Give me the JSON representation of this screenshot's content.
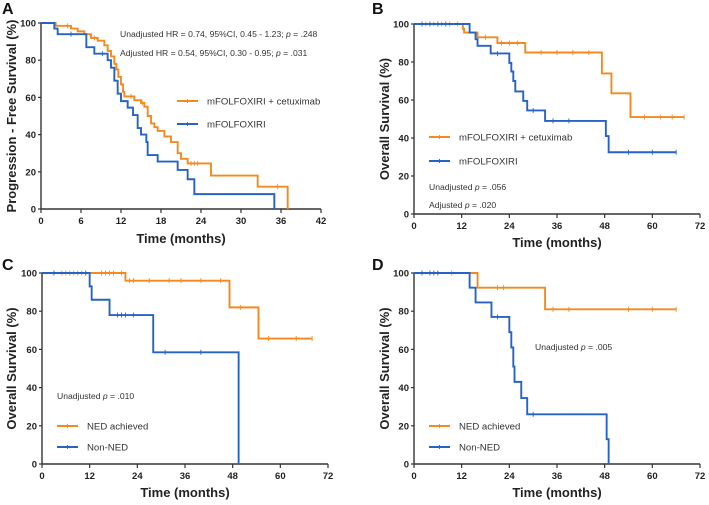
{
  "colors": {
    "orange": "#F28A1F",
    "blue": "#2563C4",
    "axis": "#333333"
  },
  "chart_data": [
    {
      "panel": "A",
      "type": "line",
      "xlabel": "Time (months)",
      "ylabel": "Progression - Free Survival (%)",
      "xlim": [
        0,
        42
      ],
      "ylim": [
        0,
        100
      ],
      "xticks": [
        0,
        6,
        12,
        18,
        24,
        30,
        36,
        42
      ],
      "yticks": [
        0,
        20,
        40,
        60,
        80,
        100
      ],
      "annotations": [
        "Unadjusted HR = 0.74, 95%CI, 0.45 - 1.23; p = .248",
        "Adjusted HR = 0.54, 95%CI, 0.30 - 0.95; p = .031"
      ],
      "legend_position": "right",
      "series": [
        {
          "name": "mFOLFOXIRI + cetuximab",
          "color": "orange",
          "end": 37,
          "steps": [
            [
              0,
              100
            ],
            [
              2.2,
              98.5
            ],
            [
              4.5,
              97
            ],
            [
              5.5,
              95.5
            ],
            [
              6.5,
              94
            ],
            [
              7.5,
              92
            ],
            [
              8.5,
              90.5
            ],
            [
              9.5,
              88
            ],
            [
              10,
              85
            ],
            [
              10.5,
              82
            ],
            [
              11,
              78
            ],
            [
              11.3,
              75
            ],
            [
              11.6,
              71
            ],
            [
              12,
              67
            ],
            [
              12.3,
              63
            ],
            [
              12.5,
              60.5
            ],
            [
              14,
              58.5
            ],
            [
              15,
              57
            ],
            [
              15.5,
              55
            ],
            [
              16,
              50
            ],
            [
              16.5,
              46
            ],
            [
              17,
              44
            ],
            [
              17.5,
              42
            ],
            [
              18.5,
              39
            ],
            [
              19.5,
              36
            ],
            [
              20.5,
              30
            ],
            [
              21,
              27
            ],
            [
              22,
              24.5
            ],
            [
              25.5,
              18
            ],
            [
              32.5,
              12
            ],
            [
              37,
              0
            ]
          ],
          "censored": [
            4,
            8,
            13.5,
            15.2,
            22.5,
            23,
            23.5,
            35.5
          ]
        },
        {
          "name": "mFOLFOXIRI",
          "color": "blue",
          "end": 35,
          "steps": [
            [
              0,
              100
            ],
            [
              2,
              97
            ],
            [
              2.5,
              94
            ],
            [
              6.8,
              87
            ],
            [
              8,
              83.5
            ],
            [
              10,
              80
            ],
            [
              10.5,
              76
            ],
            [
              11,
              69
            ],
            [
              11.5,
              62
            ],
            [
              12,
              58
            ],
            [
              13,
              54.5
            ],
            [
              13.8,
              50.5
            ],
            [
              14.5,
              43.5
            ],
            [
              15,
              40
            ],
            [
              15.8,
              36
            ],
            [
              16,
              29
            ],
            [
              17.5,
              25.5
            ],
            [
              20.5,
              21
            ],
            [
              22,
              16
            ],
            [
              23,
              8
            ],
            [
              35,
              0
            ]
          ],
          "censored": [
            4.5,
            9.2
          ]
        }
      ]
    },
    {
      "panel": "B",
      "type": "line",
      "xlabel": "Time (months)",
      "ylabel": "Overall Survival (%)",
      "xlim": [
        0,
        72
      ],
      "ylim": [
        0,
        100
      ],
      "xticks": [
        0,
        12,
        24,
        36,
        48,
        60,
        72
      ],
      "yticks": [
        0,
        20,
        40,
        60,
        80,
        100
      ],
      "annotations": [
        "Unadjusted p = .056",
        "Adjusted p = .020"
      ],
      "legend_position": "center-left",
      "series": [
        {
          "name": "mFOLFOXIRI + cetuximab",
          "color": "orange",
          "end": 68,
          "steps": [
            [
              0,
              100
            ],
            [
              12.3,
              97.5
            ],
            [
              12.6,
              95.5
            ],
            [
              16,
              93
            ],
            [
              21,
              90
            ],
            [
              28,
              85
            ],
            [
              47.3,
              74
            ],
            [
              49.7,
              63.5
            ],
            [
              54.5,
              51
            ]
          ],
          "censored": [
            3,
            5,
            7,
            9,
            11,
            18,
            22,
            24,
            26,
            32,
            36,
            40,
            44,
            58,
            62,
            65,
            68
          ]
        },
        {
          "name": "mFOLFOXIRI",
          "color": "blue",
          "end": 66,
          "steps": [
            [
              0,
              100
            ],
            [
              14,
              95.5
            ],
            [
              15.5,
              92
            ],
            [
              16,
              88.5
            ],
            [
              19.3,
              84.5
            ],
            [
              24,
              79.5
            ],
            [
              24.5,
              75
            ],
            [
              25,
              70
            ],
            [
              25.5,
              64.5
            ],
            [
              27.5,
              59.5
            ],
            [
              28.5,
              54.5
            ],
            [
              33,
              49
            ],
            [
              48.3,
              41
            ],
            [
              49,
              32.5
            ]
          ],
          "censored": [
            2,
            4,
            6,
            8,
            21,
            30,
            35,
            39,
            54,
            60,
            66
          ]
        }
      ]
    },
    {
      "panel": "C",
      "type": "line",
      "xlabel": "Time (months)",
      "ylabel": "Overall Survival (%)",
      "xlim": [
        0,
        72
      ],
      "ylim": [
        0,
        100
      ],
      "xticks": [
        0,
        12,
        24,
        36,
        48,
        60,
        72
      ],
      "yticks": [
        0,
        20,
        40,
        60,
        80,
        100
      ],
      "annotations": [
        "Unadjusted p = .010"
      ],
      "legend_position": "bottom-left",
      "series": [
        {
          "name": "NED achieved",
          "color": "orange",
          "end": 68,
          "steps": [
            [
              0,
              100
            ],
            [
              21,
              96
            ],
            [
              47.2,
              82
            ],
            [
              54.5,
              65.7
            ]
          ],
          "censored": [
            5,
            6,
            7,
            8,
            9,
            10,
            15,
            16,
            17,
            18,
            20,
            22,
            23,
            27,
            32,
            35,
            40,
            45,
            50,
            57,
            64,
            68
          ]
        },
        {
          "name": "Non-NED",
          "color": "blue",
          "end": 49.5,
          "steps": [
            [
              0,
              100
            ],
            [
              12,
              93
            ],
            [
              12.5,
              86
            ],
            [
              17,
              78
            ],
            [
              28,
              58.5
            ],
            [
              49.5,
              0
            ]
          ],
          "censored": [
            3,
            11,
            19,
            20,
            21,
            23,
            31,
            40
          ]
        }
      ]
    },
    {
      "panel": "D",
      "type": "line",
      "xlabel": "Time (months)",
      "ylabel": "Overall Survival (%)",
      "xlim": [
        0,
        72
      ],
      "ylim": [
        0,
        100
      ],
      "xticks": [
        0,
        12,
        24,
        36,
        48,
        60,
        72
      ],
      "yticks": [
        0,
        20,
        40,
        60,
        80,
        100
      ],
      "annotations": [
        "Unadjusted p = .005"
      ],
      "legend_position": "bottom-left",
      "series": [
        {
          "name": "NED achieved",
          "color": "orange",
          "end": 66,
          "steps": [
            [
              0,
              100
            ],
            [
              16,
              92.3
            ],
            [
              33,
              81
            ]
          ],
          "censored": [
            9.5,
            21,
            22.5,
            35,
            39,
            54,
            60,
            66
          ]
        },
        {
          "name": "Non-NED",
          "color": "blue",
          "end": 49,
          "steps": [
            [
              0,
              100
            ],
            [
              14,
              92.3
            ],
            [
              15.5,
              84.6
            ],
            [
              19.5,
              77
            ],
            [
              24,
              69
            ],
            [
              24.5,
              61
            ],
            [
              25,
              51
            ],
            [
              25.3,
              43
            ],
            [
              27,
              34.5
            ],
            [
              28.5,
              26
            ],
            [
              48.5,
              13
            ],
            [
              49,
              0
            ]
          ],
          "censored": [
            2,
            4,
            5,
            6,
            21,
            30
          ]
        }
      ]
    }
  ]
}
